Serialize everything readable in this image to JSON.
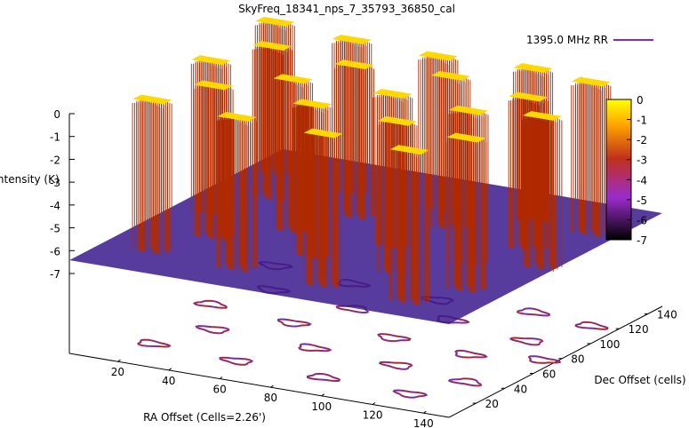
{
  "chart_data": {
    "type": "surface3d",
    "title": "SkyFreq_18341_nps_7_35793_36850_cal",
    "xlabel": "RA Offset (Cells=2.26')",
    "ylabel": "Dec Offset (cells)",
    "zlabel": "Intensity (K)",
    "legend": {
      "label": "1395.0 MHz RR",
      "color": "#7b2fbf",
      "placement": "top-right"
    },
    "x_ticks": [
      "20",
      "40",
      "60",
      "80",
      "100",
      "120",
      "140"
    ],
    "y_ticks": [
      "20",
      "40",
      "60",
      "80",
      "100",
      "120",
      "140"
    ],
    "z_ticks": [
      "0",
      "-1",
      "-2",
      "-3",
      "-4",
      "-5",
      "-6",
      "-7"
    ],
    "cb_ticks": [
      "0",
      "-1",
      "-2",
      "-3",
      "-4",
      "-5",
      "-6",
      "-7"
    ],
    "xlim": [
      1,
      150
    ],
    "ylim": [
      1,
      150
    ],
    "zlim": [
      -7,
      0
    ],
    "colorbar_range": [
      -7,
      0
    ],
    "surface": {
      "baseline": -6.6,
      "peak": 0.2
    },
    "source_cells_xy": [
      [
        12,
        125
      ],
      [
        45,
        120
      ],
      [
        80,
        118
      ],
      [
        115,
        122
      ],
      [
        140,
        118
      ],
      [
        25,
        100
      ],
      [
        60,
        95
      ],
      [
        95,
        100
      ],
      [
        130,
        92
      ],
      [
        15,
        75
      ],
      [
        50,
        70
      ],
      [
        88,
        72
      ],
      [
        120,
        68
      ],
      [
        145,
        75
      ],
      [
        30,
        50
      ],
      [
        70,
        48
      ],
      [
        105,
        45
      ],
      [
        135,
        40
      ],
      [
        20,
        25
      ],
      [
        55,
        22
      ],
      [
        90,
        20
      ],
      [
        125,
        18
      ]
    ],
    "colors": {
      "surface": "#b02a00",
      "peak": "#ffd800",
      "low": "#3a1a8c",
      "legend_line": "#7b2fbf"
    }
  }
}
